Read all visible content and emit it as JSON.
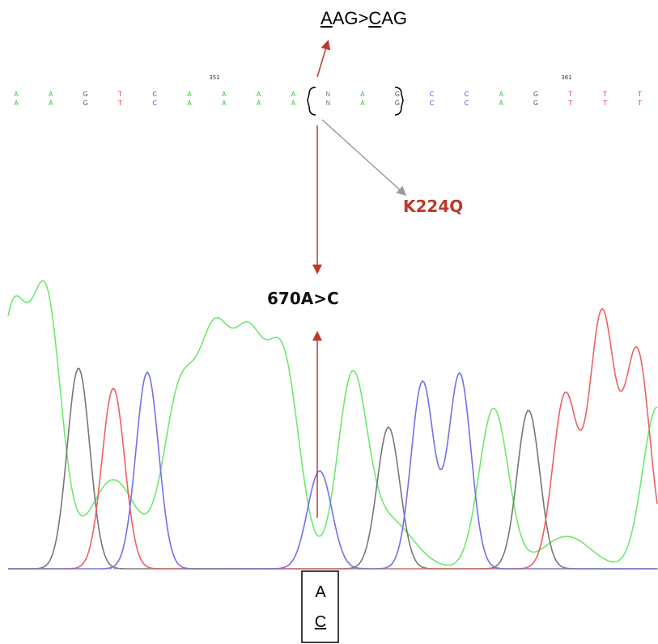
{
  "codon_change": {
    "parts": [
      "A",
      "AG>",
      "C",
      "AG"
    ]
  },
  "sequence": {
    "position_labels": [
      "351",
      "361"
    ],
    "row1": [
      "A",
      "A",
      "G",
      "T",
      "C",
      "A",
      "A",
      "A",
      "A",
      "N",
      "A",
      "G",
      "C",
      "C",
      "A",
      "G",
      "T",
      "T",
      "T"
    ],
    "row2": [
      "A",
      "A",
      "G",
      "T",
      "C",
      "A",
      "A",
      "A",
      "A",
      "N",
      "A",
      "G",
      "C",
      "C",
      "A",
      "G",
      "T",
      "T",
      "T"
    ]
  },
  "protein_change": "K224Q",
  "nucleotide_change": "670A>C",
  "base_call_box": [
    "A",
    "C"
  ]
}
